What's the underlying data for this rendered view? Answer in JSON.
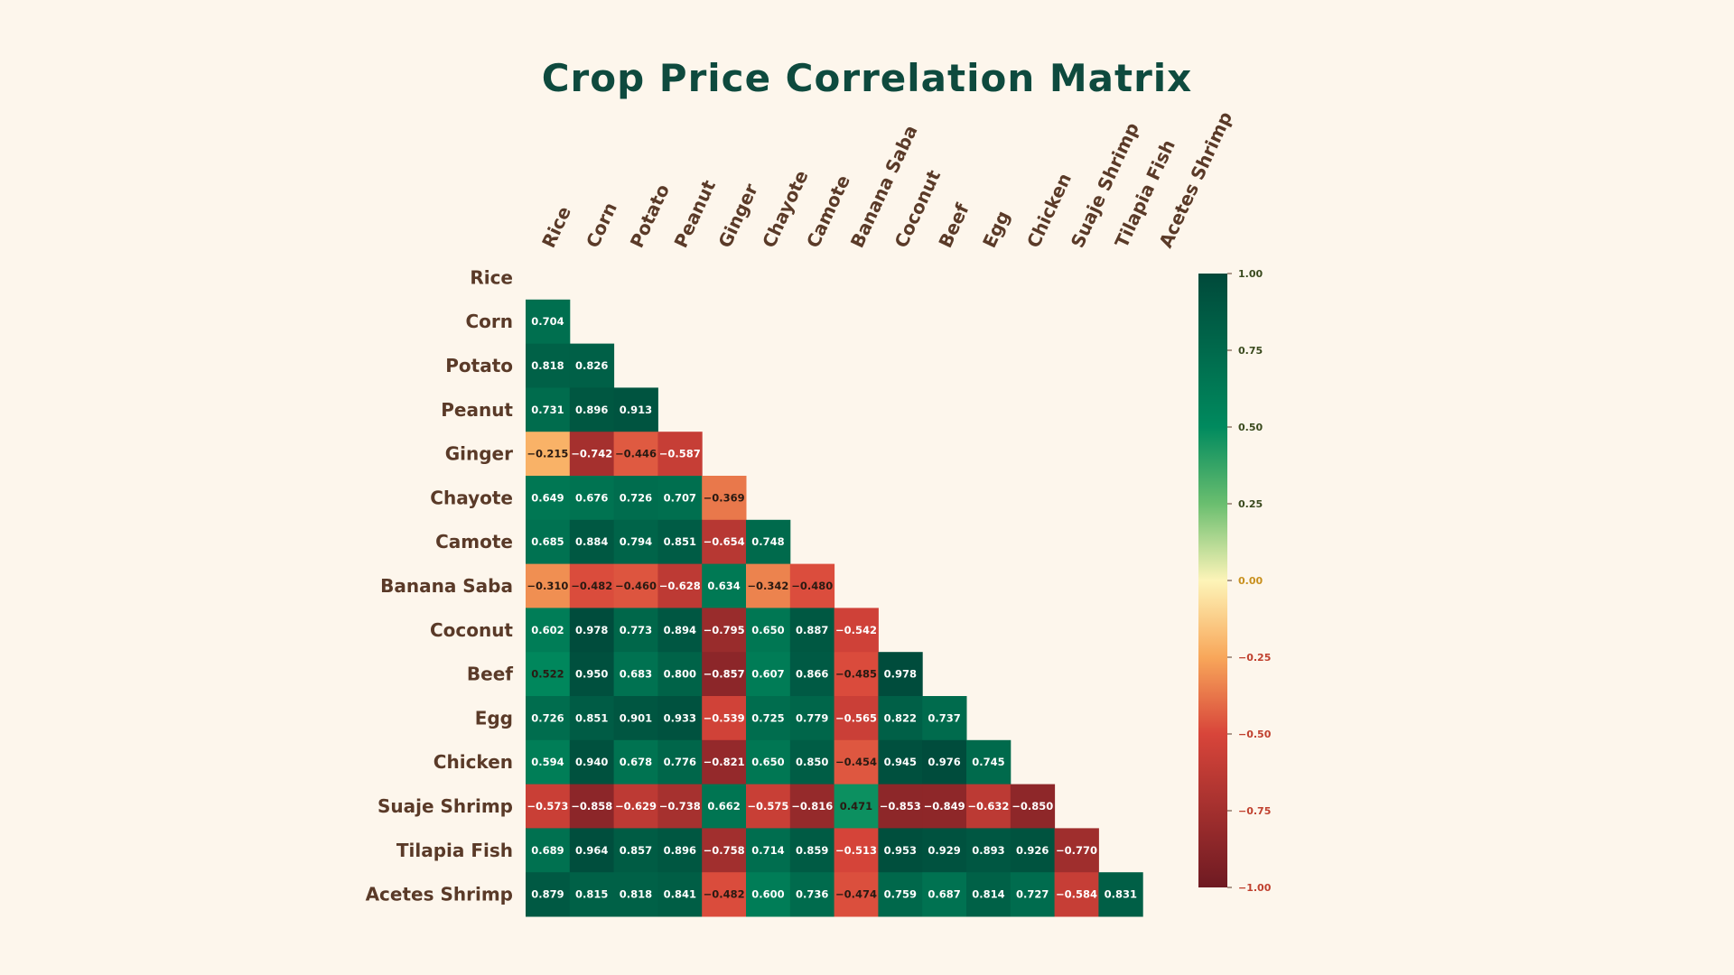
{
  "chart_data": {
    "type": "heatmap",
    "title": "Crop Price Correlation Matrix",
    "labels": [
      "Rice",
      "Corn",
      "Potato",
      "Peanut",
      "Ginger",
      "Chayote",
      "Camote",
      "Banana Saba",
      "Coconut",
      "Beef",
      "Egg",
      "Chicken",
      "Suaje Shrimp",
      "Tilapia Fish",
      "Acetes Shrimp"
    ],
    "lower_triangle_values": [
      [],
      [
        0.704
      ],
      [
        0.818,
        0.826
      ],
      [
        0.731,
        0.896,
        0.913
      ],
      [
        -0.215,
        -0.742,
        -0.446,
        -0.587
      ],
      [
        0.649,
        0.676,
        0.726,
        0.707,
        -0.369
      ],
      [
        0.685,
        0.884,
        0.794,
        0.851,
        -0.654,
        0.748
      ],
      [
        -0.31,
        -0.482,
        -0.46,
        -0.628,
        0.634,
        -0.342,
        -0.48
      ],
      [
        0.602,
        0.978,
        0.773,
        0.894,
        -0.795,
        0.65,
        0.887,
        -0.542
      ],
      [
        0.522,
        0.95,
        0.683,
        0.8,
        -0.857,
        0.607,
        0.866,
        -0.485,
        0.978
      ],
      [
        0.726,
        0.851,
        0.901,
        0.933,
        -0.539,
        0.725,
        0.779,
        -0.565,
        0.822,
        0.737
      ],
      [
        0.594,
        0.94,
        0.678,
        0.776,
        -0.821,
        0.65,
        0.85,
        -0.454,
        0.945,
        0.976,
        0.745
      ],
      [
        -0.573,
        -0.858,
        -0.629,
        -0.738,
        0.662,
        -0.575,
        -0.816,
        0.471,
        -0.853,
        -0.849,
        -0.632,
        -0.85
      ],
      [
        0.689,
        0.964,
        0.857,
        0.896,
        -0.758,
        0.714,
        0.859,
        -0.513,
        0.953,
        0.929,
        0.893,
        0.926,
        -0.77
      ],
      [
        0.879,
        0.815,
        0.818,
        0.841,
        -0.482,
        0.6,
        0.736,
        -0.474,
        0.759,
        0.687,
        0.814,
        0.727,
        -0.584,
        0.831
      ]
    ],
    "value_range": [
      -1,
      1
    ],
    "colormap": "red-yellow-green (diverging)",
    "colorbar_ticks": [
      "1.00",
      "0.75",
      "0.50",
      "0.25",
      "0.00",
      "−0.25",
      "−0.50",
      "−0.75",
      "−1.00"
    ],
    "colorbar_tick_values": [
      1,
      0.75,
      0.5,
      0.25,
      0,
      -0.25,
      -0.5,
      -0.75,
      -1
    ]
  },
  "colors": {
    "background": "#fdf6ec",
    "title": "#0e4a3e",
    "label": "#5a3a28"
  }
}
